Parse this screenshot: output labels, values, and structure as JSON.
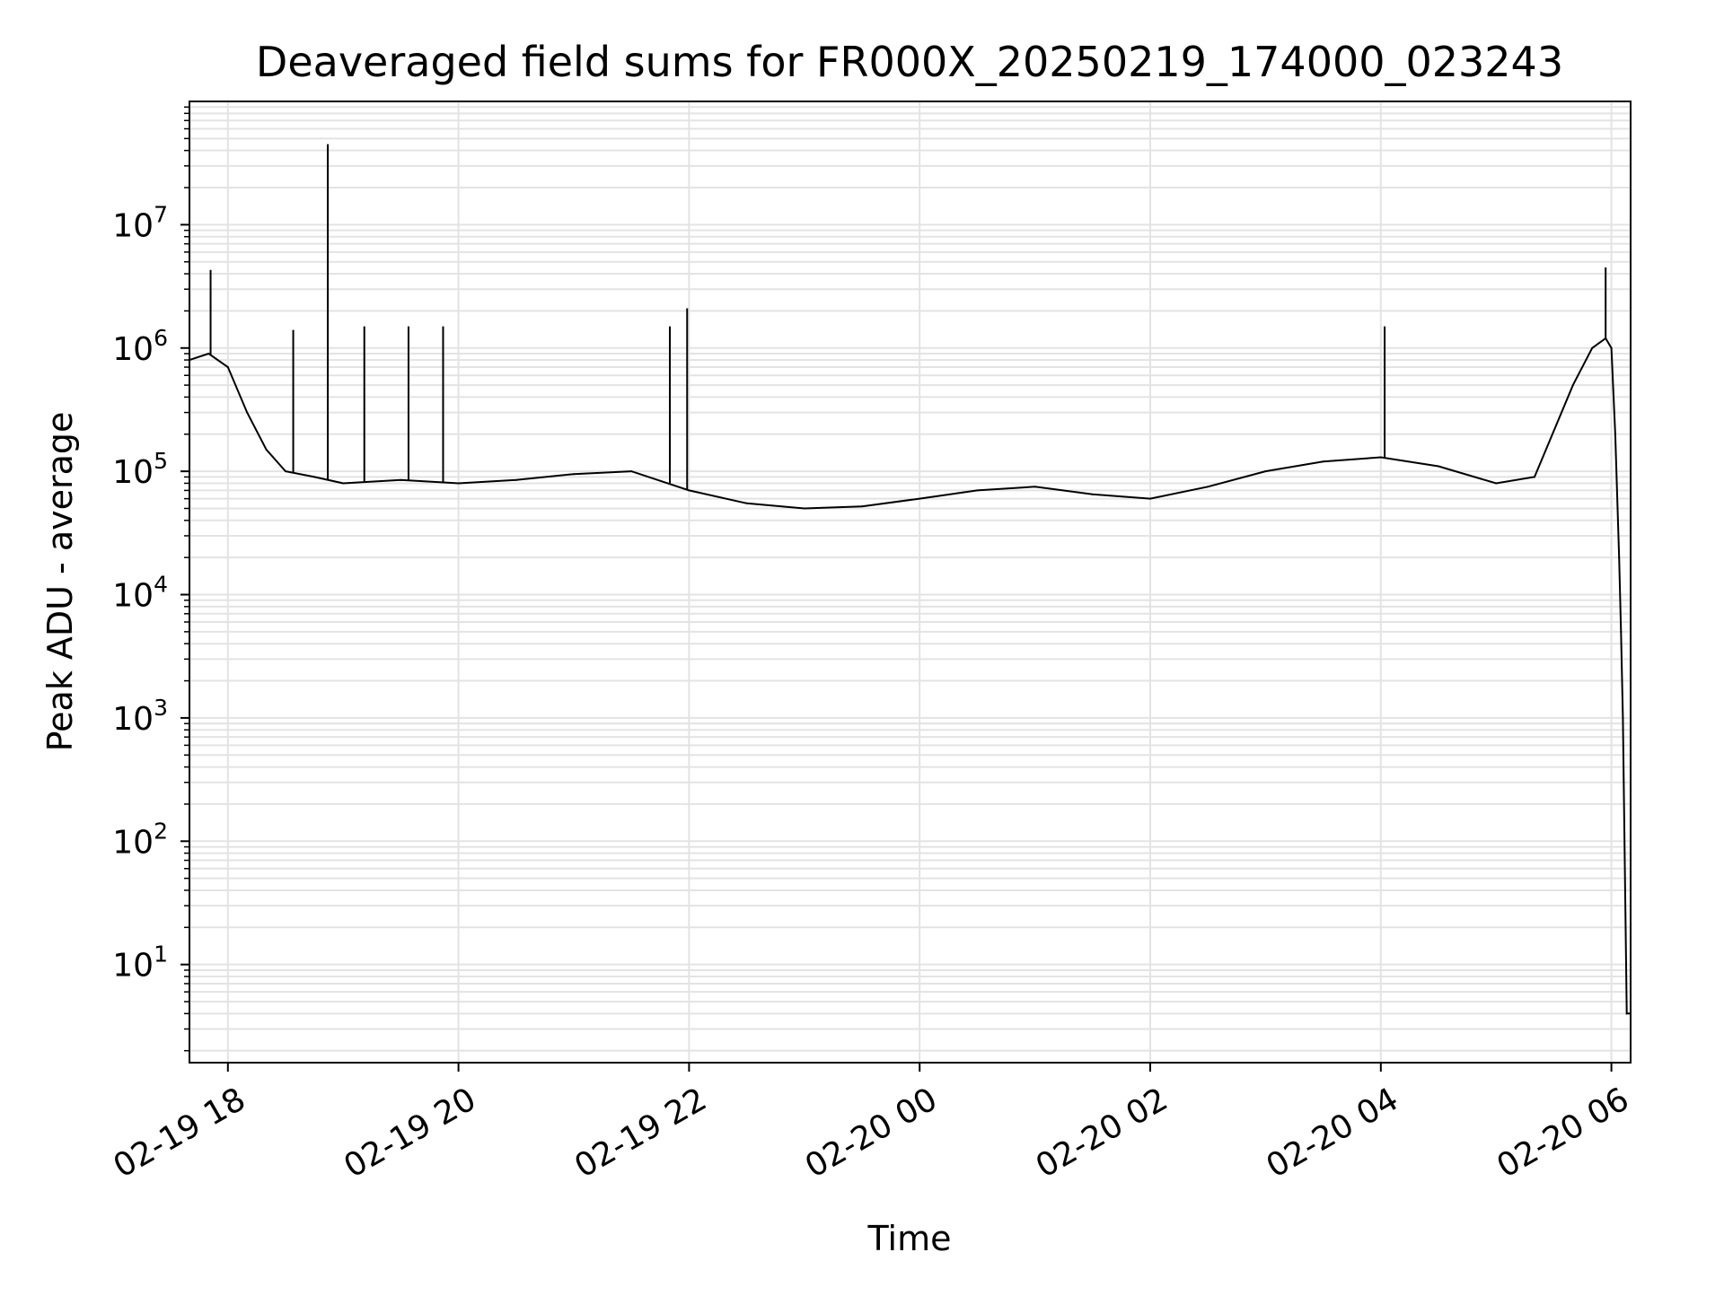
{
  "chart_data": {
    "type": "line",
    "title": "Deaveraged field sums for FR000X_20250219_174000_023243",
    "xlabel": "Time",
    "ylabel": "Peak ADU - average",
    "yscale": "log",
    "ylim": [
      1.6,
      100000000
    ],
    "xlim": [
      "2025-02-19 17:40",
      "2025-02-20 06:10"
    ],
    "grid": true,
    "x_ticks": [
      {
        "t": "2025-02-19 18:00",
        "label": "02-19 18"
      },
      {
        "t": "2025-02-19 20:00",
        "label": "02-19 20"
      },
      {
        "t": "2025-02-19 22:00",
        "label": "02-19 22"
      },
      {
        "t": "2025-02-20 00:00",
        "label": "02-20 00"
      },
      {
        "t": "2025-02-20 02:00",
        "label": "02-20 02"
      },
      {
        "t": "2025-02-20 04:00",
        "label": "02-20 04"
      },
      {
        "t": "2025-02-20 06:00",
        "label": "02-20 06"
      }
    ],
    "y_ticks": [
      {
        "value": 10,
        "base": "10",
        "exp": "1"
      },
      {
        "value": 100,
        "base": "10",
        "exp": "2"
      },
      {
        "value": 1000,
        "base": "10",
        "exp": "3"
      },
      {
        "value": 10000,
        "base": "10",
        "exp": "4"
      },
      {
        "value": 100000,
        "base": "10",
        "exp": "5"
      },
      {
        "value": 1000000,
        "base": "10",
        "exp": "6"
      },
      {
        "value": 10000000,
        "base": "10",
        "exp": "7"
      }
    ],
    "line_color": "#000000",
    "series": [
      {
        "x": [
          "2025-02-19 17:40",
          "2025-02-19 17:50",
          "2025-02-19 18:00",
          "2025-02-19 18:10",
          "2025-02-19 18:20",
          "2025-02-19 18:30",
          "2025-02-19 18:45",
          "2025-02-19 19:00",
          "2025-02-19 19:30",
          "2025-02-19 20:00",
          "2025-02-19 20:30",
          "2025-02-19 21:00",
          "2025-02-19 21:30",
          "2025-02-19 22:00",
          "2025-02-19 22:30",
          "2025-02-19 23:00",
          "2025-02-19 23:30",
          "2025-02-20 00:00",
          "2025-02-20 00:30",
          "2025-02-20 01:00",
          "2025-02-20 01:30",
          "2025-02-20 02:00",
          "2025-02-20 02:30",
          "2025-02-20 03:00",
          "2025-02-20 03:30",
          "2025-02-20 04:00",
          "2025-02-20 04:30",
          "2025-02-20 05:00",
          "2025-02-20 05:20",
          "2025-02-20 05:40",
          "2025-02-20 05:50",
          "2025-02-20 05:57",
          "2025-02-20 06:00",
          "2025-02-20 06:02",
          "2025-02-20 06:04",
          "2025-02-20 06:05",
          "2025-02-20 06:06",
          "2025-02-20 06:08",
          "2025-02-20 06:10"
        ],
        "values": [
          800000,
          900000,
          700000,
          300000,
          150000,
          100000,
          90000,
          80000,
          85000,
          80000,
          85000,
          95000,
          100000,
          70000,
          55000,
          50000,
          52000,
          60000,
          70000,
          75000,
          65000,
          60000,
          75000,
          100000,
          120000,
          130000,
          110000,
          80000,
          90000,
          500000,
          1000000,
          1200000,
          1000000,
          200000,
          20000,
          5000,
          1000,
          4,
          4
        ]
      }
    ],
    "spikes": [
      {
        "x": "2025-02-19 17:51",
        "y": 4300000
      },
      {
        "x": "2025-02-19 18:52",
        "y": 45000000
      },
      {
        "x": "2025-02-19 18:34",
        "y": 1400000
      },
      {
        "x": "2025-02-19 19:11",
        "y": 1500000
      },
      {
        "x": "2025-02-19 19:34",
        "y": 1500000
      },
      {
        "x": "2025-02-19 19:52",
        "y": 1500000
      },
      {
        "x": "2025-02-19 21:50",
        "y": 1500000
      },
      {
        "x": "2025-02-19 21:59",
        "y": 2100000
      },
      {
        "x": "2025-02-20 04:02",
        "y": 1500000
      },
      {
        "x": "2025-02-20 05:57",
        "y": 4500000
      }
    ]
  }
}
